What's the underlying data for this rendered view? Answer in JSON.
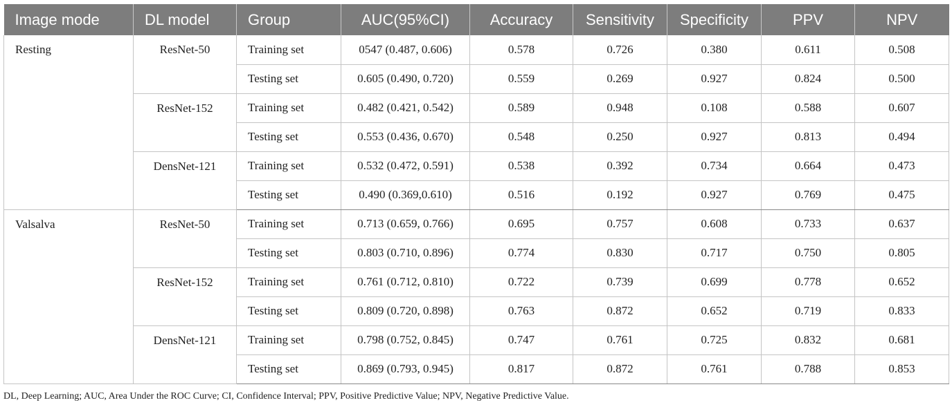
{
  "table": {
    "headers": [
      "Image mode",
      "DL model",
      "Group",
      "AUC(95%CI)",
      "Accuracy",
      "Sensitivity",
      "Specificity",
      "PPV",
      "NPV"
    ],
    "rows": [
      {
        "mode": "Resting",
        "model": "ResNet-50",
        "group": "Training set",
        "auc": "0547 (0.487, 0.606)",
        "accuracy": "0.578",
        "sensitivity": "0.726",
        "specificity": "0.380",
        "ppv": "0.611",
        "npv": "0.508"
      },
      {
        "mode": "",
        "model": "",
        "group": "Testing set",
        "auc": "0.605 (0.490, 0.720)",
        "accuracy": "0.559",
        "sensitivity": "0.269",
        "specificity": "0.927",
        "ppv": "0.824",
        "npv": "0.500"
      },
      {
        "mode": "",
        "model": "ResNet-152",
        "group": "Training set",
        "auc": "0.482 (0.421, 0.542)",
        "accuracy": "0.589",
        "sensitivity": "0.948",
        "specificity": "0.108",
        "ppv": "0.588",
        "npv": "0.607"
      },
      {
        "mode": "",
        "model": "",
        "group": "Testing set",
        "auc": "0.553 (0.436, 0.670)",
        "accuracy": "0.548",
        "sensitivity": "0.250",
        "specificity": "0.927",
        "ppv": "0.813",
        "npv": "0.494"
      },
      {
        "mode": "",
        "model": "DensNet-121",
        "group": "Training set",
        "auc": "0.532 (0.472, 0.591)",
        "accuracy": "0.538",
        "sensitivity": "0.392",
        "specificity": "0.734",
        "ppv": "0.664",
        "npv": "0.473"
      },
      {
        "mode": "",
        "model": "",
        "group": "Testing set",
        "auc": "0.490 (0.369,0.610)",
        "accuracy": "0.516",
        "sensitivity": "0.192",
        "specificity": "0.927",
        "ppv": "0.769",
        "npv": "0.475"
      },
      {
        "mode": "Valsalva",
        "model": "ResNet-50",
        "group": "Training set",
        "auc": "0.713 (0.659, 0.766)",
        "accuracy": "0.695",
        "sensitivity": "0.757",
        "specificity": "0.608",
        "ppv": "0.733",
        "npv": "0.637"
      },
      {
        "mode": "",
        "model": "",
        "group": "Testing set",
        "auc": "0.803 (0.710, 0.896)",
        "accuracy": "0.774",
        "sensitivity": "0.830",
        "specificity": "0.717",
        "ppv": "0.750",
        "npv": "0.805"
      },
      {
        "mode": "",
        "model": "ResNet-152",
        "group": "Training set",
        "auc": "0.761 (0.712, 0.810)",
        "accuracy": "0.722",
        "sensitivity": "0.739",
        "specificity": "0.699",
        "ppv": "0.778",
        "npv": "0.652"
      },
      {
        "mode": "",
        "model": "",
        "group": "Testing set",
        "auc": "0.809 (0.720, 0.898)",
        "accuracy": "0.763",
        "sensitivity": "0.872",
        "specificity": "0.652",
        "ppv": "0.719",
        "npv": "0.833"
      },
      {
        "mode": "",
        "model": "DensNet-121",
        "group": "Training set",
        "auc": "0.798 (0.752, 0.845)",
        "accuracy": "0.747",
        "sensitivity": "0.761",
        "specificity": "0.725",
        "ppv": "0.832",
        "npv": "0.681"
      },
      {
        "mode": "",
        "model": "",
        "group": "Testing set",
        "auc": "0.869 (0.793, 0.945)",
        "accuracy": "0.817",
        "sensitivity": "0.872",
        "specificity": "0.761",
        "ppv": "0.788",
        "npv": "0.853"
      }
    ]
  },
  "footnote": "DL, Deep Learning; AUC, Area Under the ROC Curve; CI, Confidence Interval; PPV, Positive Predictive Value; NPV, Negative Predictive Value."
}
